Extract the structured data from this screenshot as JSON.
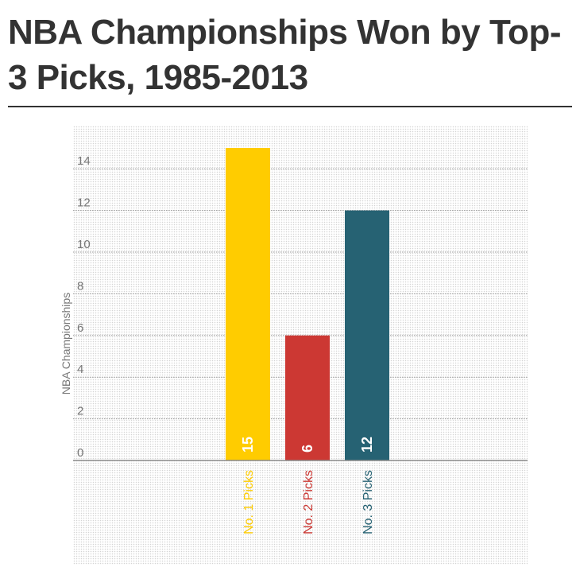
{
  "title": "NBA Championships Won by Top-3 Picks, 1985-2013",
  "chart_data": {
    "type": "bar",
    "title": "NBA Championships Won by Top-3 Picks, 1985-2013",
    "xlabel": "",
    "ylabel": "NBA Championships",
    "ylim": [
      0,
      15
    ],
    "yticks": [
      0,
      2,
      4,
      6,
      8,
      10,
      12,
      14
    ],
    "categories": [
      "No. 1 Picks",
      "No. 2 Picks",
      "No. 3 Picks"
    ],
    "values": [
      15,
      6,
      12
    ],
    "colors": [
      "#ffcc00",
      "#cc3833",
      "#266273"
    ],
    "data_labels": [
      "15",
      "6",
      "12"
    ],
    "grid": true,
    "legend": "none"
  }
}
